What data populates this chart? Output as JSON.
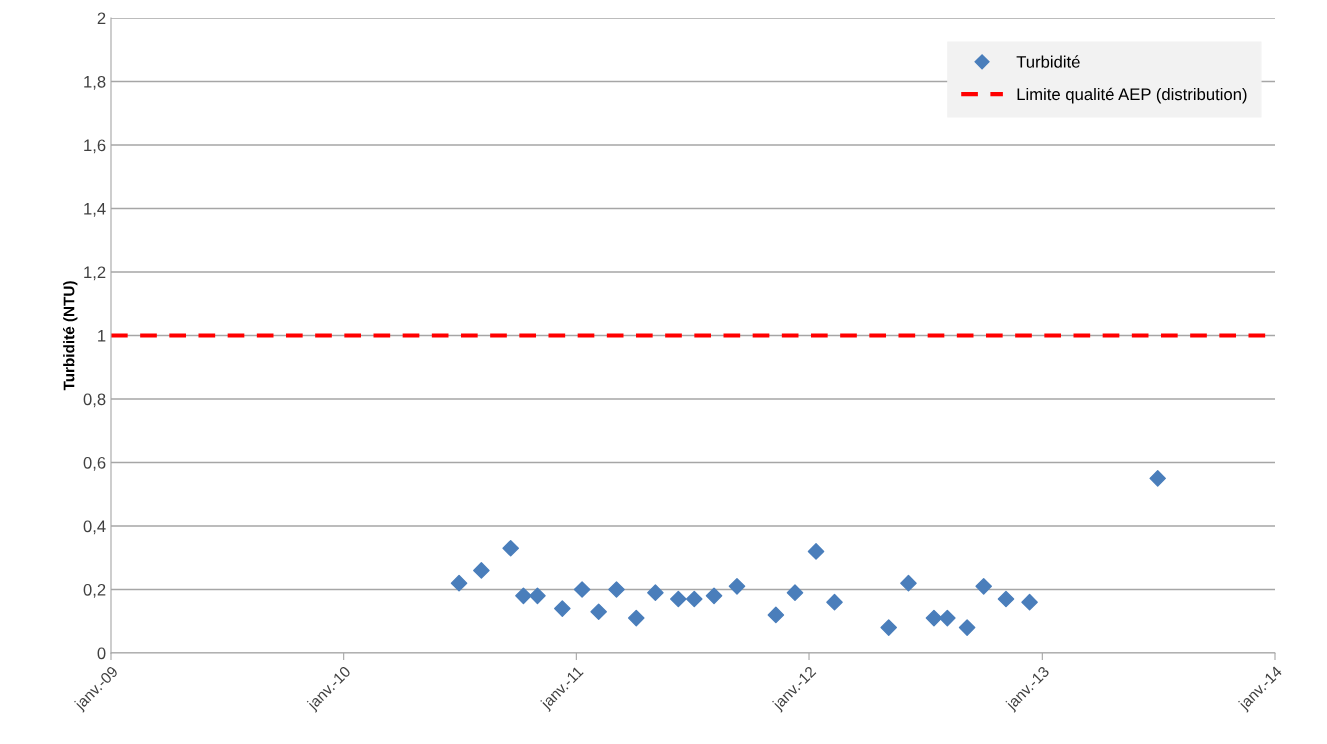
{
  "chart_data": {
    "type": "scatter",
    "ylabel": "Turbidité (NTU)",
    "x": [
      "2010-07-01",
      "2010-08-05",
      "2010-09-20",
      "2010-10-10",
      "2010-11-01",
      "2010-12-10",
      "2011-01-10",
      "2011-02-05",
      "2011-03-05",
      "2011-04-05",
      "2011-05-05",
      "2011-06-10",
      "2011-07-05",
      "2011-08-05",
      "2011-09-10",
      "2011-11-10",
      "2011-12-10",
      "2012-01-12",
      "2012-02-10",
      "2012-05-05",
      "2012-06-05",
      "2012-07-15",
      "2012-08-05",
      "2012-09-05",
      "2012-10-01",
      "2012-11-05",
      "2012-12-12",
      "2013-07-01"
    ],
    "series": [
      {
        "name": "Turbidité",
        "color": "#4a7ebb",
        "values": [
          0.22,
          0.26,
          0.33,
          0.18,
          0.18,
          0.14,
          0.2,
          0.13,
          0.2,
          0.11,
          0.19,
          0.17,
          0.17,
          0.18,
          0.21,
          0.12,
          0.19,
          0.32,
          0.16,
          0.08,
          0.22,
          0.11,
          0.11,
          0.08,
          0.21,
          0.17,
          0.16,
          0.55
        ]
      }
    ],
    "marker": "diamond",
    "ref_lines": [
      {
        "axis": "y",
        "value": 1,
        "label": "Limite qualité AEP (distribution)",
        "color": "#ff0000",
        "line_style": "dashed"
      }
    ],
    "xlim": [
      "2009-01-01",
      "2014-01-01"
    ],
    "xticks": [
      {
        "value": "2009-01-01",
        "label": "janv.-09"
      },
      {
        "value": "2010-01-01",
        "label": "janv.-10"
      },
      {
        "value": "2011-01-01",
        "label": "janv.-11"
      },
      {
        "value": "2012-01-01",
        "label": "janv.-12"
      },
      {
        "value": "2013-01-01",
        "label": "janv.-13"
      },
      {
        "value": "2014-01-01",
        "label": "janv.-14"
      }
    ],
    "ylim": [
      0,
      2
    ],
    "yticks": [
      {
        "value": 0,
        "label": "0"
      },
      {
        "value": 0.2,
        "label": "0,2"
      },
      {
        "value": 0.4,
        "label": "0,4"
      },
      {
        "value": 0.6,
        "label": "0,6"
      },
      {
        "value": 0.8,
        "label": "0,8"
      },
      {
        "value": 1,
        "label": "1"
      },
      {
        "value": 1.2,
        "label": "1,2"
      },
      {
        "value": 1.4,
        "label": "1,4"
      },
      {
        "value": 1.6,
        "label": "1,6"
      },
      {
        "value": 1.8,
        "label": "1,8"
      },
      {
        "value": 2,
        "label": "2"
      }
    ],
    "grid": "y",
    "legend": "top right"
  }
}
